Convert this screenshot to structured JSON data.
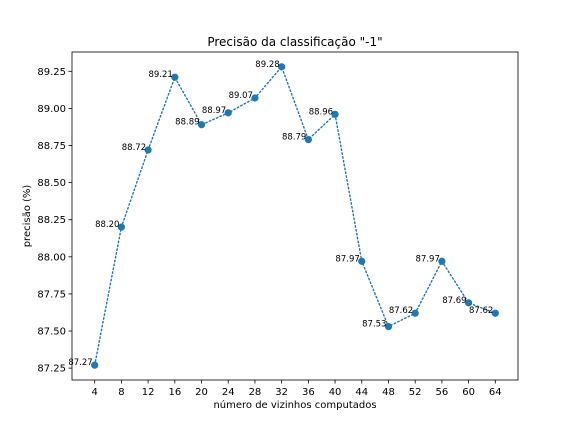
{
  "chart_data": {
    "type": "line",
    "title": "Precisão da classificação \"-1\"",
    "xlabel": "número de vizinhos computados",
    "ylabel": "precisão (%)",
    "x": [
      4,
      8,
      12,
      16,
      20,
      24,
      28,
      32,
      36,
      40,
      44,
      48,
      52,
      56,
      60,
      64
    ],
    "x_ticks": [
      "4",
      "8",
      "12",
      "16",
      "20",
      "24",
      "28",
      "32",
      "36",
      "40",
      "44",
      "48",
      "52",
      "56",
      "60",
      "64"
    ],
    "series": [
      {
        "values": [
          87.27,
          88.2,
          88.72,
          89.21,
          88.89,
          88.97,
          89.07,
          89.28,
          88.79,
          88.96,
          87.97,
          87.53,
          87.62,
          87.97,
          87.69,
          87.62
        ],
        "labels": [
          "87.27",
          "88.20",
          "88.72",
          "89.21",
          "88.89",
          "88.97",
          "89.07",
          "89.28",
          "88.79",
          "88.96",
          "87.97",
          "87.53",
          "87.62",
          "87.97",
          "87.69",
          "87.62"
        ]
      }
    ],
    "xlim": [
      0.6,
      67.4
    ],
    "ylim": [
      87.17,
      89.38
    ],
    "y_ticks": [
      "87.25",
      "87.50",
      "87.75",
      "88.00",
      "88.25",
      "88.50",
      "88.75",
      "89.00",
      "89.25"
    ],
    "line_style": "dotted",
    "marker": "circle",
    "color": "#1f77b4",
    "grid": false,
    "legend": "none"
  }
}
